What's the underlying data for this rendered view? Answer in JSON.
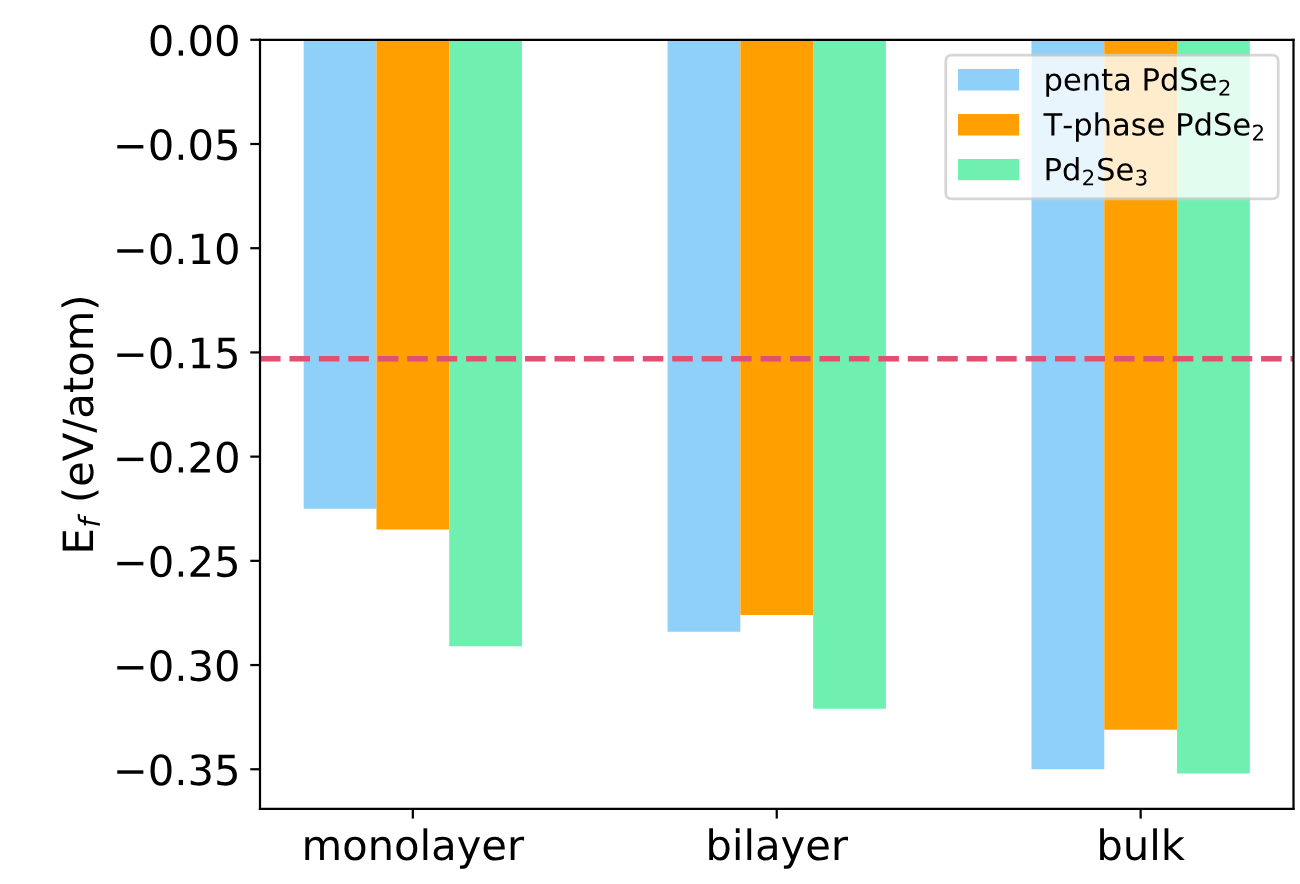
{
  "chart_data": {
    "type": "bar",
    "ylabel": "E$_{f}$ (eV/atom)",
    "categories": [
      "monolayer",
      "bilayer",
      "bulk"
    ],
    "series": [
      {
        "name": "penta PdSe$_{2}$",
        "color": "#8fd0f8",
        "values": [
          -0.225,
          -0.284,
          -0.35
        ]
      },
      {
        "name": "T-phase PdSe$_{2}$",
        "color": "#ffa000",
        "values": [
          -0.235,
          -0.276,
          -0.331
        ]
      },
      {
        "name": "Pd$_{2}$Se$_{3}$",
        "color": "#6ff0b0",
        "values": [
          -0.291,
          -0.321,
          -0.352
        ]
      }
    ],
    "ylim": [
      -0.369,
      0.0
    ],
    "yticks": [
      {
        "value": 0.0,
        "label": "0.00"
      },
      {
        "value": -0.05,
        "label": "−0.05"
      },
      {
        "value": -0.1,
        "label": "−0.10"
      },
      {
        "value": -0.15,
        "label": "−0.15"
      },
      {
        "value": -0.2,
        "label": "−0.20"
      },
      {
        "value": -0.25,
        "label": "−0.25"
      },
      {
        "value": -0.3,
        "label": "−0.30"
      },
      {
        "value": -0.35,
        "label": "−0.35"
      }
    ],
    "ref_lines": [
      {
        "axis": "y",
        "value": -0.153,
        "label": null,
        "color": "#e05070",
        "line_style": "dashed"
      }
    ],
    "legend": "top right",
    "grid": false
  }
}
